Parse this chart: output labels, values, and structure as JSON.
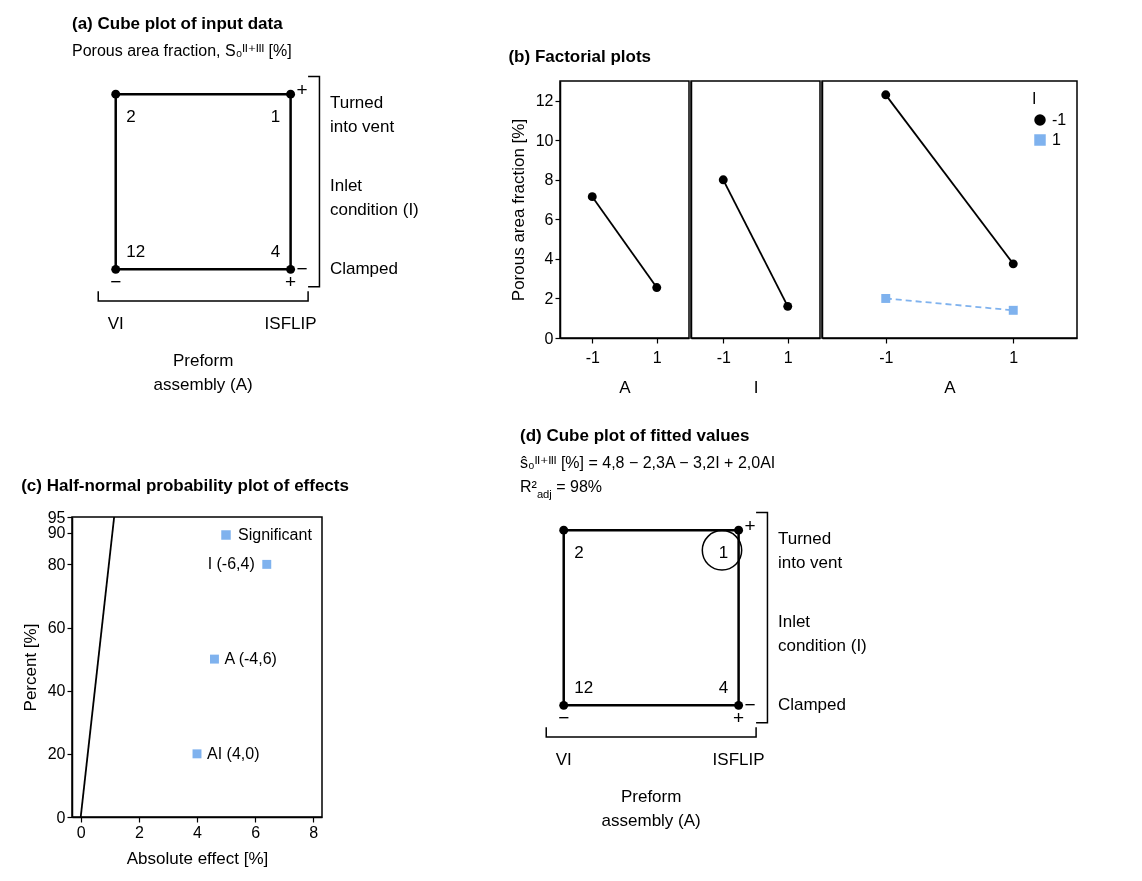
{
  "chart_data": [
    {
      "type": "other",
      "title": "(a) Cube plot of input data",
      "subtitle": "Porous area fraction, S₀ᴵᴵ⁺ᴵᴵᴵ [%]",
      "categories": [
        null,
        null,
        null,
        null
      ],
      "values": [
        2,
        1,
        12,
        4
      ],
      "color": "#000000",
      "data_labels": true,
      "xlabel": "Preform assembly (A)",
      "ylabel": "Inlet condition (I)",
      "annotations": [
        "+",
        "−",
        "−",
        "+",
        "VI",
        "ISFLIP",
        "Turned into vent",
        "Clamped"
      ]
    },
    {
      "type": "line",
      "title": "(b) Factorial plots",
      "categories": [
        "-1",
        "1"
      ],
      "values": [
        7.15,
        2.55
      ],
      "color": "#000000",
      "marker": "circle",
      "xlabel": "A",
      "ylabel": "Porous area fraction [%]",
      "ylim": [
        0,
        13
      ],
      "yticks": [
        0,
        2,
        4,
        6,
        8,
        10,
        12
      ]
    },
    {
      "type": "line",
      "categories": [
        "-1",
        "1"
      ],
      "values": [
        8.0,
        1.6
      ],
      "color": "#000000",
      "marker": "circle",
      "xlabel": "I",
      "ylim": [
        0,
        13
      ],
      "tick_labels": "x"
    },
    {
      "type": "line",
      "categories": [
        "-1",
        "1"
      ],
      "xlabel": "A",
      "ylim": [
        0,
        13
      ],
      "tick_labels": "x",
      "legend": "top right",
      "legend_title": "I",
      "series": [
        {
          "name": "-1",
          "color": "#000000",
          "marker": "circle",
          "line_style": "solid",
          "values": [
            12.3,
            3.75
          ]
        },
        {
          "name": "1",
          "color": "#7fb2ee",
          "marker": "square",
          "line_style": "dashed",
          "values": [
            2.0,
            1.4
          ]
        }
      ]
    },
    {
      "type": "scatter",
      "title": "(c) Half-normal probability plot of effects",
      "xlabel": "Absolute effect [%]",
      "ylabel": "Percent [%]",
      "xlim": [
        -0.3,
        8.3
      ],
      "xticks": [
        0,
        2,
        4,
        6,
        8
      ],
      "ylim": [
        0,
        95
      ],
      "yticks": [
        0,
        20,
        40,
        60,
        80,
        90,
        95
      ],
      "legend": "top right",
      "series": [
        {
          "type": "line",
          "color": "#000000",
          "marker": "none",
          "x": [
            0,
            1.15
          ],
          "values": [
            0,
            95
          ]
        },
        {
          "name": "Significant",
          "color": "#7fb2ee",
          "marker": "square",
          "x": [
            4.0,
            4.6,
            6.4
          ],
          "values": [
            20,
            50,
            80
          ]
        }
      ],
      "annotations": [
        {
          "text": "I (-6,4)",
          "x": 6.4,
          "y": 80
        },
        {
          "text": "A (-4,6)",
          "x": 4.6,
          "y": 50
        },
        {
          "text": "AI (4,0)",
          "x": 4.0,
          "y": 20
        }
      ]
    },
    {
      "type": "other",
      "title": "(d) Cube plot of fitted values",
      "subtitle": "ŝ₀ᴵᴵ⁺ᴵᴵᴵ [%] = 4,8 − 2,3A − 3,2I + 2,0AI\nR²$_{adj}$ = 98%",
      "categories": [
        null,
        null,
        null,
        null
      ],
      "values": [
        2,
        1,
        12,
        4
      ],
      "color": "#000000",
      "data_labels": true,
      "xlabel": "Preform assembly (A)",
      "ylabel": "Inlet condition (I)",
      "annotations": [
        "+",
        "−",
        "−",
        "+",
        "VI",
        "ISFLIP",
        "Turned into vent",
        "Clamped"
      ]
    }
  ]
}
